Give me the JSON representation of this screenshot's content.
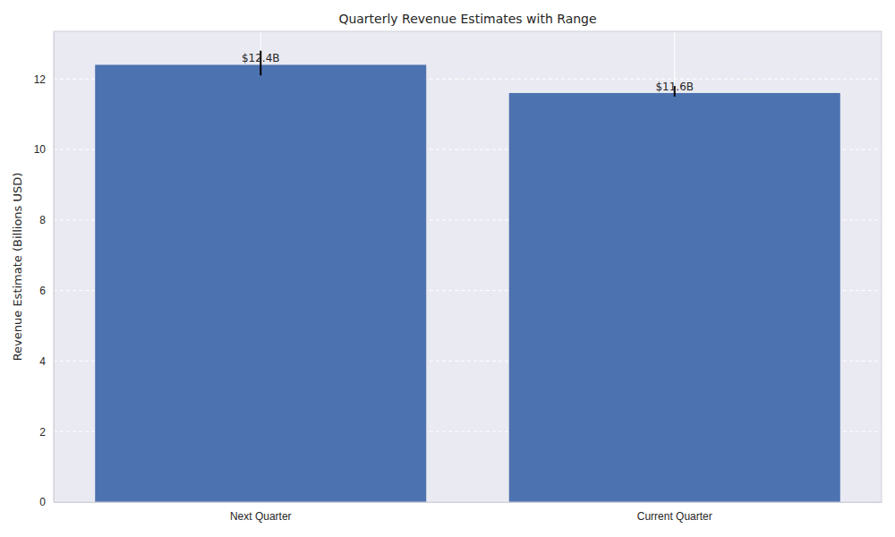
{
  "chart_data": {
    "type": "bar",
    "title": "Quarterly Revenue Estimates with Range",
    "y_label": "Revenue Estimate (Billions USD)",
    "categories": [
      "Next Quarter",
      "Current Quarter"
    ],
    "values": [
      12.4,
      11.6
    ],
    "value_labels": [
      "$12.4B",
      "$11.6B"
    ],
    "range_low": [
      12.1,
      11.5
    ],
    "range_high": [
      12.8,
      11.8
    ],
    "color": "#4c72b0",
    "ylim": [
      0,
      13.35
    ],
    "yticks": [
      0,
      2,
      4,
      6,
      8,
      10,
      12
    ],
    "grid": true,
    "data_labels": true
  }
}
